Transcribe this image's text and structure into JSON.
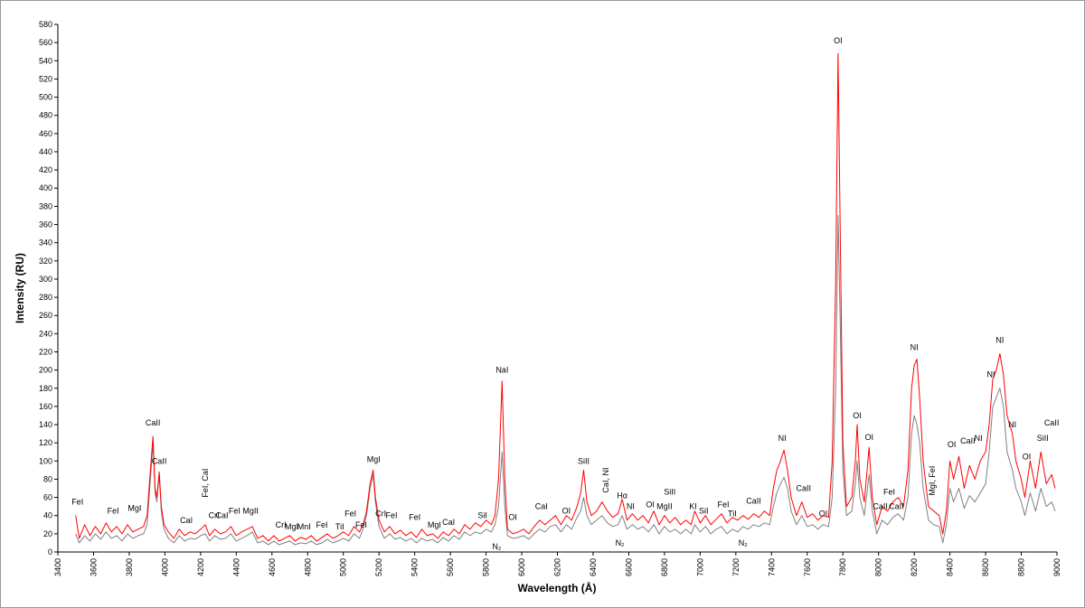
{
  "chart_data": {
    "type": "line",
    "x_label": "Wavelength (Å)",
    "y_label": "Intensity (RU)",
    "xlim": [
      3400,
      9000
    ],
    "ylim": [
      0,
      580
    ],
    "xticks": [
      3400,
      3600,
      3800,
      4000,
      4200,
      4400,
      4600,
      4800,
      5000,
      5200,
      5400,
      5600,
      5800,
      6000,
      6200,
      6400,
      6600,
      6800,
      7000,
      7200,
      7400,
      7600,
      7800,
      8000,
      8200,
      8400,
      8600,
      8800,
      9000
    ],
    "yticks": [
      0,
      20,
      40,
      60,
      80,
      100,
      120,
      140,
      160,
      180,
      200,
      220,
      240,
      260,
      280,
      300,
      320,
      340,
      360,
      380,
      400,
      420,
      440,
      460,
      480,
      500,
      520,
      540,
      560,
      580
    ],
    "x": [
      3500,
      3520,
      3550,
      3580,
      3610,
      3640,
      3670,
      3700,
      3730,
      3760,
      3790,
      3820,
      3850,
      3880,
      3900,
      3915,
      3933,
      3945,
      3955,
      3968,
      3980,
      3995,
      4020,
      4050,
      4080,
      4110,
      4140,
      4170,
      4200,
      4226,
      4250,
      4280,
      4310,
      4340,
      4370,
      4400,
      4430,
      4460,
      4490,
      4520,
      4550,
      4580,
      4610,
      4640,
      4670,
      4700,
      4730,
      4760,
      4790,
      4820,
      4850,
      4880,
      4910,
      4940,
      4970,
      5000,
      5030,
      5060,
      5090,
      5110,
      5130,
      5150,
      5167,
      5180,
      5200,
      5230,
      5260,
      5290,
      5320,
      5350,
      5380,
      5410,
      5440,
      5470,
      5500,
      5530,
      5560,
      5590,
      5620,
      5650,
      5680,
      5710,
      5740,
      5770,
      5800,
      5830,
      5850,
      5870,
      5890,
      5905,
      5920,
      5950,
      5980,
      6010,
      6040,
      6070,
      6100,
      6130,
      6160,
      6190,
      6220,
      6250,
      6280,
      6310,
      6330,
      6347,
      6365,
      6390,
      6420,
      6450,
      6480,
      6510,
      6540,
      6563,
      6590,
      6620,
      6650,
      6680,
      6710,
      6740,
      6770,
      6800,
      6830,
      6860,
      6890,
      6920,
      6950,
      6970,
      7000,
      7030,
      7060,
      7090,
      7120,
      7150,
      7180,
      7210,
      7240,
      7270,
      7300,
      7330,
      7360,
      7390,
      7410,
      7430,
      7450,
      7470,
      7490,
      7510,
      7540,
      7570,
      7600,
      7630,
      7660,
      7690,
      7720,
      7740,
      7760,
      7773,
      7785,
      7800,
      7820,
      7850,
      7870,
      7880,
      7895,
      7920,
      7947,
      7965,
      7990,
      8020,
      8050,
      8080,
      8110,
      8140,
      8165,
      8185,
      8200,
      8215,
      8230,
      8250,
      8280,
      8310,
      8340,
      8360,
      8380,
      8400,
      8420,
      8450,
      8480,
      8510,
      8540,
      8570,
      8600,
      8620,
      8640,
      8660,
      8680,
      8700,
      8720,
      8750,
      8770,
      8800,
      8820,
      8850,
      8880,
      8910,
      8940,
      8970,
      8990
    ],
    "series": [
      {
        "color": "#808080",
        "values": [
          20,
          10,
          18,
          12,
          20,
          14,
          22,
          15,
          18,
          12,
          20,
          15,
          18,
          20,
          30,
          70,
          120,
          65,
          55,
          85,
          45,
          25,
          15,
          10,
          18,
          12,
          15,
          14,
          18,
          20,
          12,
          18,
          14,
          15,
          20,
          12,
          15,
          18,
          22,
          10,
          12,
          8,
          12,
          8,
          10,
          12,
          8,
          10,
          9,
          12,
          8,
          10,
          14,
          10,
          12,
          15,
          12,
          20,
          15,
          25,
          40,
          70,
          85,
          55,
          28,
          15,
          20,
          14,
          16,
          12,
          15,
          10,
          15,
          12,
          14,
          10,
          16,
          12,
          18,
          14,
          22,
          18,
          22,
          20,
          25,
          22,
          30,
          50,
          110,
          50,
          18,
          15,
          16,
          18,
          14,
          20,
          25,
          22,
          28,
          30,
          22,
          30,
          25,
          38,
          45,
          60,
          40,
          30,
          35,
          40,
          32,
          28,
          30,
          40,
          25,
          30,
          25,
          28,
          22,
          30,
          20,
          28,
          22,
          25,
          20,
          25,
          20,
          30,
          22,
          28,
          20,
          25,
          28,
          20,
          25,
          22,
          28,
          25,
          30,
          28,
          32,
          30,
          50,
          65,
          75,
          82,
          70,
          45,
          30,
          40,
          28,
          30,
          25,
          30,
          28,
          60,
          180,
          370,
          250,
          90,
          40,
          45,
          75,
          100,
          60,
          40,
          85,
          45,
          20,
          35,
          30,
          38,
          42,
          35,
          60,
          130,
          150,
          140,
          120,
          70,
          35,
          30,
          28,
          10,
          30,
          70,
          55,
          70,
          48,
          62,
          55,
          65,
          75,
          110,
          160,
          170,
          180,
          160,
          110,
          90,
          70,
          55,
          40,
          65,
          45,
          70,
          50,
          55,
          45
        ]
      },
      {
        "color": "#ff0000",
        "values": [
          40,
          15,
          30,
          18,
          28,
          20,
          32,
          22,
          28,
          20,
          30,
          22,
          25,
          28,
          40,
          80,
          127,
          70,
          60,
          88,
          50,
          30,
          22,
          15,
          25,
          18,
          22,
          20,
          25,
          30,
          18,
          25,
          20,
          22,
          28,
          18,
          22,
          25,
          28,
          15,
          18,
          12,
          18,
          12,
          15,
          18,
          12,
          16,
          14,
          18,
          12,
          16,
          20,
          15,
          18,
          22,
          18,
          28,
          22,
          30,
          45,
          75,
          90,
          60,
          35,
          22,
          28,
          20,
          24,
          18,
          22,
          16,
          25,
          18,
          20,
          15,
          22,
          18,
          25,
          20,
          30,
          25,
          32,
          28,
          35,
          30,
          40,
          80,
          188,
          80,
          25,
          20,
          22,
          25,
          20,
          28,
          35,
          30,
          35,
          40,
          30,
          40,
          35,
          50,
          65,
          90,
          55,
          40,
          45,
          55,
          45,
          38,
          42,
          58,
          35,
          42,
          35,
          40,
          32,
          45,
          30,
          40,
          32,
          38,
          30,
          35,
          30,
          45,
          32,
          40,
          30,
          36,
          42,
          32,
          38,
          35,
          40,
          36,
          42,
          38,
          45,
          40,
          70,
          90,
          100,
          112,
          90,
          60,
          40,
          55,
          38,
          42,
          35,
          40,
          38,
          100,
          300,
          548,
          350,
          120,
          50,
          60,
          100,
          140,
          80,
          55,
          115,
          60,
          30,
          50,
          45,
          55,
          60,
          50,
          90,
          180,
          205,
          212,
          170,
          100,
          50,
          45,
          40,
          20,
          45,
          100,
          80,
          105,
          70,
          95,
          80,
          100,
          110,
          140,
          190,
          200,
          218,
          195,
          150,
          130,
          100,
          80,
          60,
          100,
          70,
          110,
          75,
          85,
          70
        ]
      }
    ],
    "annotations": [
      {
        "text": "FeI",
        "x": 3510,
        "y": 55
      },
      {
        "text": "FeI",
        "x": 3710,
        "y": 45
      },
      {
        "text": "MgI",
        "x": 3830,
        "y": 48
      },
      {
        "text": "CaII",
        "x": 3933,
        "y": 142
      },
      {
        "text": "CaII",
        "x": 3968,
        "y": 100
      },
      {
        "text": "CaI",
        "x": 4120,
        "y": 35
      },
      {
        "text": "FeI, CaI",
        "x": 4226,
        "y": 60
      },
      {
        "text": "CrI",
        "x": 4275,
        "y": 40
      },
      {
        "text": "CaI",
        "x": 4320,
        "y": 40
      },
      {
        "text": "FeI",
        "x": 4390,
        "y": 45
      },
      {
        "text": "MgII",
        "x": 4480,
        "y": 45
      },
      {
        "text": "CrI",
        "x": 4650,
        "y": 30
      },
      {
        "text": "MgI",
        "x": 4710,
        "y": 28
      },
      {
        "text": "MnI",
        "x": 4780,
        "y": 28
      },
      {
        "text": "FeI",
        "x": 4880,
        "y": 30
      },
      {
        "text": "TiI",
        "x": 4980,
        "y": 28
      },
      {
        "text": "FeI",
        "x": 5040,
        "y": 42
      },
      {
        "text": "FeI",
        "x": 5100,
        "y": 30
      },
      {
        "text": "MgI",
        "x": 5170,
        "y": 102
      },
      {
        "text": "CrI",
        "x": 5210,
        "y": 42
      },
      {
        "text": "FeI",
        "x": 5270,
        "y": 40
      },
      {
        "text": "FeI",
        "x": 5400,
        "y": 38
      },
      {
        "text": "MgI",
        "x": 5510,
        "y": 30
      },
      {
        "text": "CaI",
        "x": 5590,
        "y": 33
      },
      {
        "text": "SiI",
        "x": 5780,
        "y": 40
      },
      {
        "text": "N₂",
        "x": 5860,
        "y": 6
      },
      {
        "text": "NaI",
        "x": 5890,
        "y": 200
      },
      {
        "text": "OI",
        "x": 5950,
        "y": 38
      },
      {
        "text": "CaI",
        "x": 6110,
        "y": 50
      },
      {
        "text": "OI",
        "x": 6250,
        "y": 45
      },
      {
        "text": "SiII",
        "x": 6347,
        "y": 100
      },
      {
        "text": "CaI, NI",
        "x": 6470,
        "y": 65
      },
      {
        "text": "N₂",
        "x": 6550,
        "y": 10
      },
      {
        "text": "Hα",
        "x": 6563,
        "y": 62
      },
      {
        "text": "NI",
        "x": 6610,
        "y": 50
      },
      {
        "text": "OI",
        "x": 6720,
        "y": 52
      },
      {
        "text": "MgII",
        "x": 6800,
        "y": 50
      },
      {
        "text": "SiII",
        "x": 6830,
        "y": 66
      },
      {
        "text": "KI",
        "x": 6960,
        "y": 50
      },
      {
        "text": "SiI",
        "x": 7020,
        "y": 45
      },
      {
        "text": "FeI",
        "x": 7130,
        "y": 52
      },
      {
        "text": "TiI",
        "x": 7180,
        "y": 42
      },
      {
        "text": "N₂",
        "x": 7240,
        "y": 10
      },
      {
        "text": "CaII",
        "x": 7300,
        "y": 56
      },
      {
        "text": "NI",
        "x": 7460,
        "y": 125
      },
      {
        "text": "CaII",
        "x": 7580,
        "y": 70
      },
      {
        "text": "OI",
        "x": 7690,
        "y": 42
      },
      {
        "text": "OI",
        "x": 7773,
        "y": 562
      },
      {
        "text": "OI",
        "x": 7880,
        "y": 150
      },
      {
        "text": "OI",
        "x": 7947,
        "y": 126
      },
      {
        "text": "CaII",
        "x": 8010,
        "y": 50
      },
      {
        "text": "FeI",
        "x": 8060,
        "y": 66
      },
      {
        "text": "CaII",
        "x": 8100,
        "y": 50
      },
      {
        "text": "NI",
        "x": 8200,
        "y": 225
      },
      {
        "text": "MgI, FeI",
        "x": 8300,
        "y": 62
      },
      {
        "text": "OI",
        "x": 8410,
        "y": 118
      },
      {
        "text": "CaII",
        "x": 8500,
        "y": 122
      },
      {
        "text": "NI",
        "x": 8560,
        "y": 125
      },
      {
        "text": "NI",
        "x": 8630,
        "y": 195
      },
      {
        "text": "NI",
        "x": 8680,
        "y": 233
      },
      {
        "text": "NI",
        "x": 8750,
        "y": 140
      },
      {
        "text": "OI",
        "x": 8830,
        "y": 105
      },
      {
        "text": "SiII",
        "x": 8920,
        "y": 125
      },
      {
        "text": "CaII",
        "x": 8970,
        "y": 142
      }
    ]
  }
}
